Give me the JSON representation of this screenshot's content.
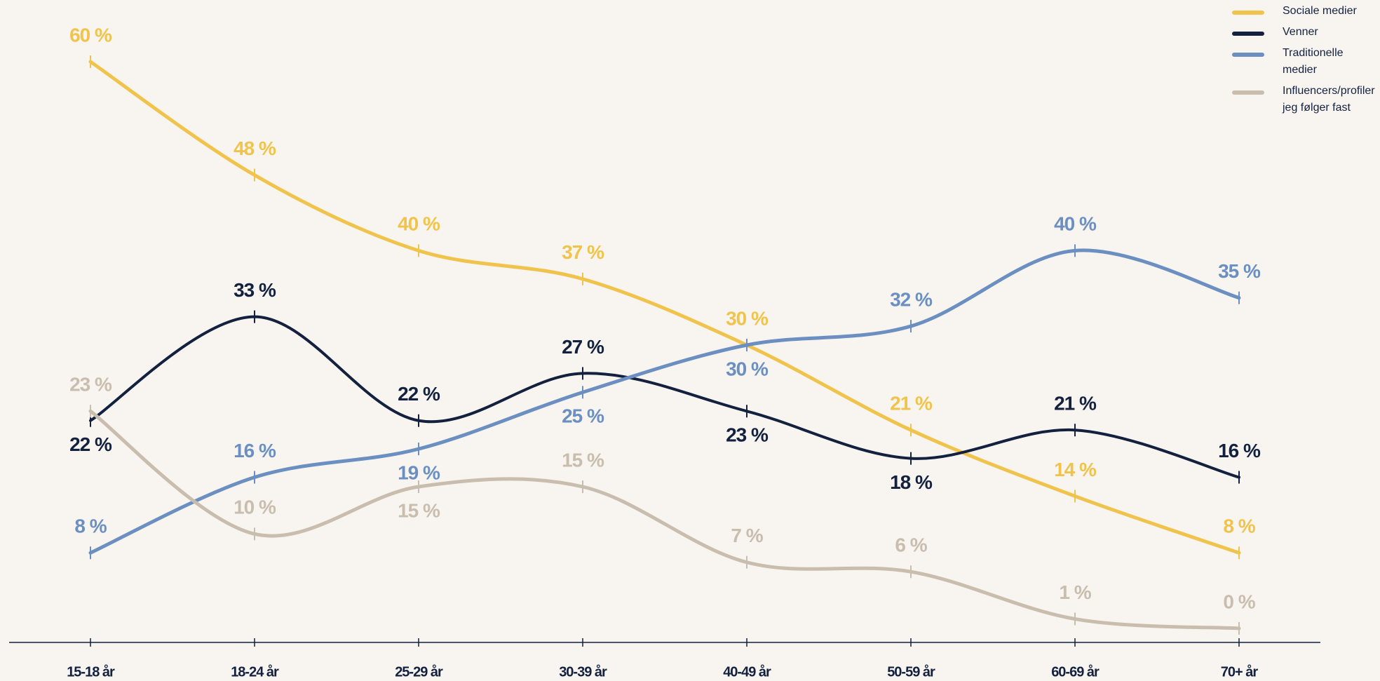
{
  "chart_data": {
    "type": "line",
    "categories": [
      "15-18 år",
      "18-24 år",
      "25-29 år",
      "30-39 år",
      "40-49 år",
      "50-59 år",
      "60-69 år",
      "70+ år"
    ],
    "ylim": [
      0,
      60
    ],
    "legend": "top-right",
    "series": [
      {
        "name": "Sociale medier",
        "color": "#f0c44c",
        "values": [
          60,
          48,
          40,
          37,
          30,
          21,
          14,
          8
        ],
        "value_labels": [
          "60 %",
          "48 %",
          "40 %",
          "37 %",
          "30 %",
          "21 %",
          "14 %",
          "8 %"
        ]
      },
      {
        "name": "Venner",
        "color": "#13213f",
        "values": [
          22,
          33,
          22,
          27,
          23,
          18,
          21,
          16
        ],
        "value_labels": [
          "22 %",
          "33 %",
          "22 %",
          "27 %",
          "23 %",
          "18 %",
          "21 %",
          "16 %"
        ]
      },
      {
        "name": "Traditionelle medier",
        "color": "#6b8fc0",
        "values": [
          8,
          16,
          19,
          25,
          30,
          32,
          40,
          35
        ],
        "value_labels": [
          "8 %",
          "16 %",
          "19 %",
          "25 %",
          "30 %",
          "32 %",
          "40 %",
          "35 %"
        ]
      },
      {
        "name": "Influencers/profiler jeg følger fast",
        "color": "#c9bdae",
        "values": [
          23,
          10,
          15,
          15,
          7,
          6,
          1,
          0
        ],
        "value_labels": [
          "23 %",
          "10 %",
          "15 %",
          "15 %",
          "7 %",
          "6 %",
          "1 %",
          "0 %"
        ]
      }
    ]
  }
}
